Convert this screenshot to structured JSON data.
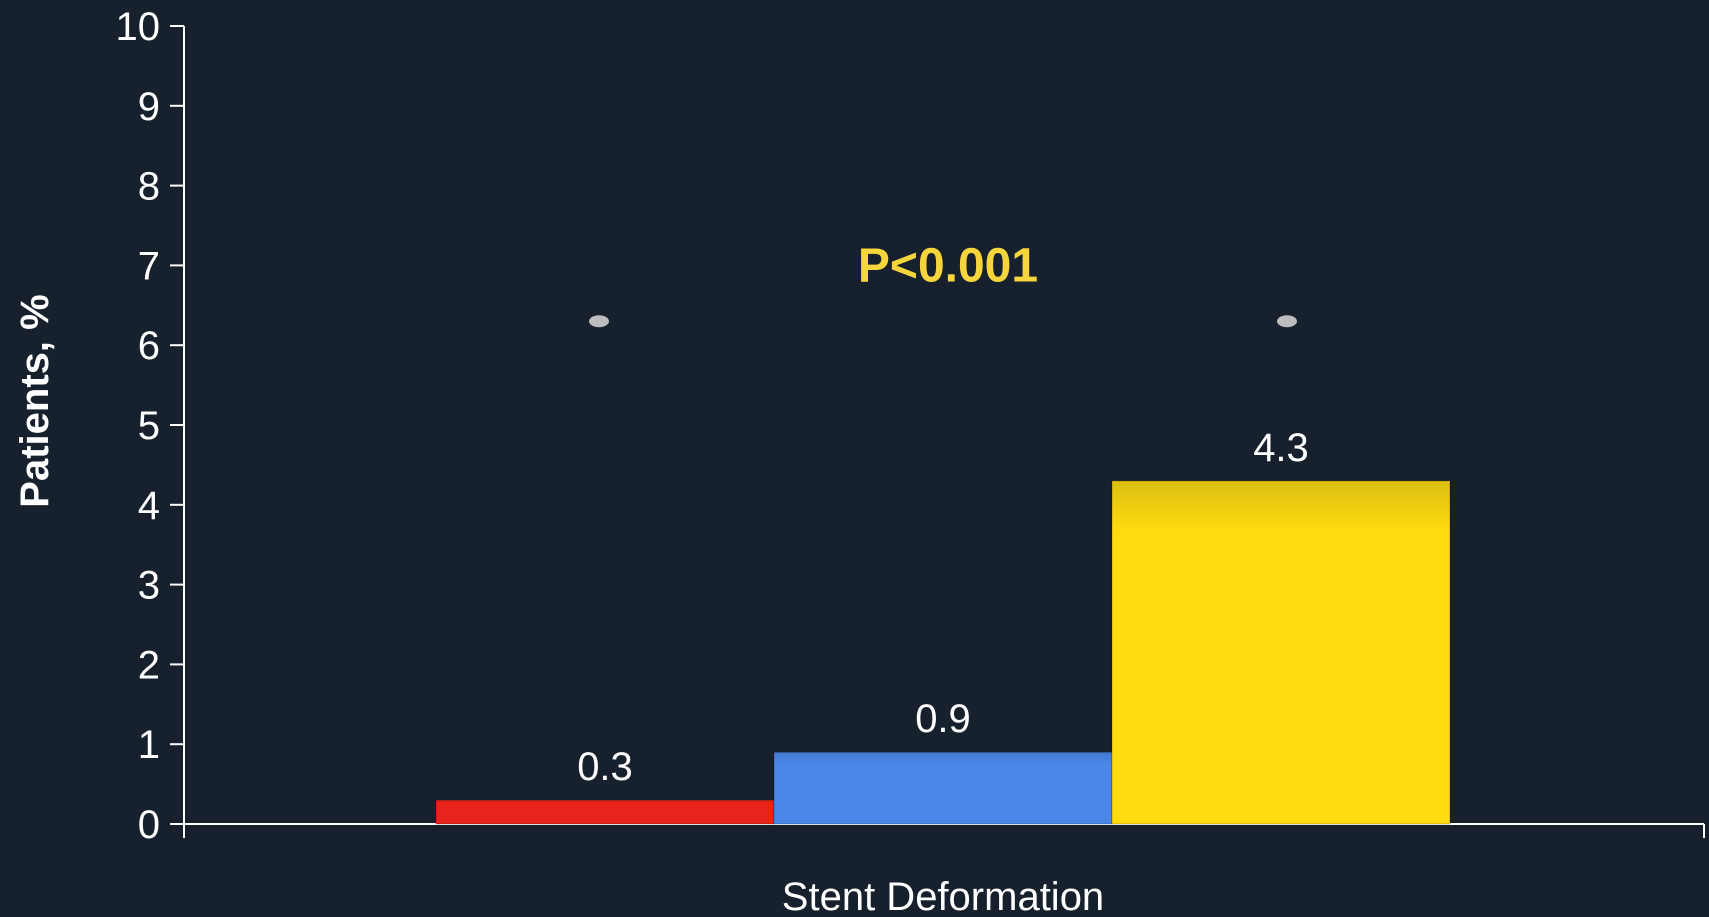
{
  "chart_data": {
    "type": "bar",
    "categories": [
      "Stent Deformation"
    ],
    "series": [
      {
        "values": [
          0.3
        ],
        "color": "#e8231b"
      },
      {
        "values": [
          0.9
        ],
        "color": "#4a86e8"
      },
      {
        "values": [
          4.3
        ],
        "color": "#ffdc0f"
      }
    ],
    "data_labels": [
      "0.3",
      "0.9",
      "4.3"
    ],
    "ylabel": "Patients, %",
    "xlabel": "",
    "ylim": [
      0,
      10
    ],
    "yticks": [
      0,
      1,
      2,
      3,
      4,
      5,
      6,
      7,
      8,
      9,
      10
    ],
    "grid": false,
    "annotation": {
      "text": "P<0.001",
      "y": 6.3,
      "from_series": 0,
      "to_series": 2,
      "color": "#f6d63c"
    }
  }
}
